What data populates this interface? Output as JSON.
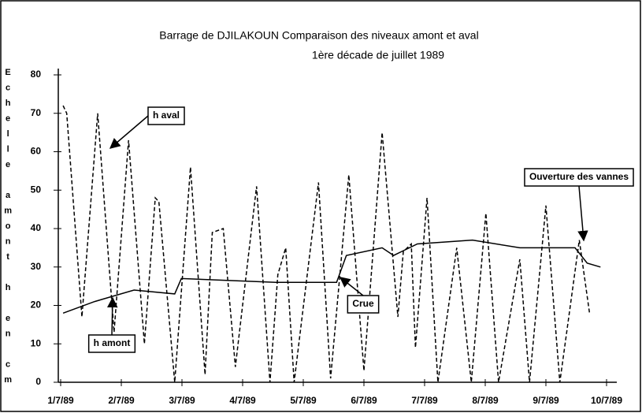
{
  "chart_data": {
    "type": "line",
    "title": "Barrage de DJILAKOUN    Comparaison des niveaux amont et aval",
    "subtitle": "1ère décade de juillet 1989",
    "y_label": "Echelle amont h en cm",
    "xlim": [
      1,
      10
    ],
    "xticks": [
      {
        "value": 1,
        "label": "1/7/89"
      },
      {
        "value": 2,
        "label": "2/7/89"
      },
      {
        "value": 3,
        "label": "3/7/89"
      },
      {
        "value": 4,
        "label": "4/7/89"
      },
      {
        "value": 5,
        "label": "5/7/89"
      },
      {
        "value": 6,
        "label": "6/7/89"
      },
      {
        "value": 7,
        "label": "7/7/89"
      },
      {
        "value": 8,
        "label": "8/7/89"
      },
      {
        "value": 9,
        "label": "9/7/89"
      },
      {
        "value": 10,
        "label": "10/7/89"
      }
    ],
    "ylim": [
      0,
      80
    ],
    "yticks": [
      0,
      10,
      20,
      30,
      40,
      50,
      60,
      70,
      80
    ],
    "grid": false,
    "series": [
      {
        "name": "h aval",
        "color": "#000000",
        "linestyle": "dashed",
        "x": [
          1.04,
          1.1,
          1.35,
          1.61,
          1.88,
          2.12,
          2.38,
          2.56,
          2.62,
          2.88,
          3.14,
          3.38,
          3.5,
          3.68,
          3.88,
          4.23,
          4.45,
          4.58,
          4.71,
          4.85,
          5.25,
          5.45,
          5.75,
          6.0,
          6.3,
          6.56,
          6.65,
          6.78,
          6.85,
          7.04,
          7.22,
          7.53,
          7.77,
          8.01,
          8.22,
          8.57,
          8.73,
          9.0,
          9.23,
          9.55,
          9.72
        ],
        "values": [
          72,
          70,
          17,
          70,
          13,
          63,
          10,
          48,
          47,
          0,
          56,
          2,
          39,
          40,
          4,
          51,
          0,
          28,
          35,
          0,
          52,
          1,
          54,
          3,
          65,
          17,
          34,
          36,
          9,
          48,
          0,
          35,
          0,
          44,
          0,
          32,
          0,
          46,
          0,
          37,
          18
        ]
      },
      {
        "name": "h amont",
        "color": "#000000",
        "linestyle": "solid",
        "x": [
          1.04,
          1.56,
          2.21,
          2.88,
          2.99,
          4.55,
          5.55,
          5.71,
          6.3,
          6.49,
          6.88,
          7.79,
          8.57,
          9.48,
          9.68,
          9.9
        ],
        "values": [
          18,
          21,
          24,
          23,
          27,
          26,
          26,
          33,
          35,
          33,
          36,
          37,
          35,
          35,
          31,
          30
        ]
      }
    ],
    "annotations": [
      {
        "text": "h aval"
      },
      {
        "text": "h amont"
      },
      {
        "text": "Crue"
      },
      {
        "text": "Ouverture des vannes"
      }
    ]
  }
}
